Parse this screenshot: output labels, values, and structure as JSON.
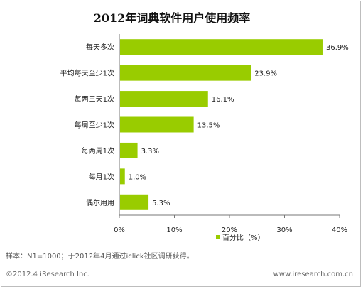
{
  "chart_data": {
    "type": "bar",
    "orientation": "horizontal",
    "title": "2012年词典软件用户使用频率",
    "categories": [
      "每天多次",
      "平均每天至少1次",
      "每两三天1次",
      "每周至少1次",
      "每两周1次",
      "每月1次",
      "偶尔用用"
    ],
    "values": [
      36.9,
      23.9,
      16.1,
      13.5,
      3.3,
      1.0,
      5.3
    ],
    "value_labels": [
      "36.9%",
      "23.9%",
      "16.1%",
      "13.5%",
      "3.3%",
      "1.0%",
      "5.3%"
    ],
    "xlim": [
      0,
      40
    ],
    "x_ticks": [
      0,
      10,
      20,
      30,
      40
    ],
    "x_tick_labels": [
      "0%",
      "10%",
      "20%",
      "30%",
      "40%"
    ],
    "grid": false,
    "legend": {
      "label": "百分比（%）",
      "placement": "bottom-center"
    },
    "bar_color": "#99cc00",
    "axis_color": "#777777"
  },
  "footer": {
    "sample_note": "样本：N1=1000；于2012年4月通过iclick社区调研获得。",
    "copyright": "©2012.4 iResearch Inc.",
    "url": "www.iresearch.com.cn"
  }
}
